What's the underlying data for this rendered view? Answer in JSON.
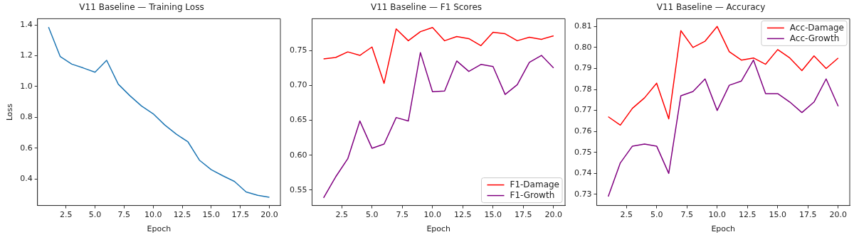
{
  "chart_data": [
    {
      "type": "line",
      "title": "V11 Baseline — Training Loss",
      "xlabel": "Epoch",
      "ylabel": "Loss",
      "x": [
        1,
        2,
        3,
        4,
        5,
        6,
        7,
        8,
        9,
        10,
        11,
        12,
        13,
        14,
        15,
        16,
        17,
        18,
        19,
        20
      ],
      "series": [
        {
          "color": "#1f77b4",
          "values": [
            1.385,
            1.195,
            1.145,
            1.12,
            1.093,
            1.17,
            1.015,
            0.94,
            0.873,
            0.823,
            0.75,
            0.69,
            0.64,
            0.52,
            0.46,
            0.42,
            0.383,
            0.315,
            0.293,
            0.28
          ]
        }
      ],
      "xlim": [
        0.05,
        20.95
      ],
      "xticks": [
        {
          "value": 2.5,
          "label": "2.5"
        },
        {
          "value": 5,
          "label": "5.0"
        },
        {
          "value": 7.5,
          "label": "7.5"
        },
        {
          "value": 10,
          "label": "10.0"
        },
        {
          "value": 12.5,
          "label": "12.5"
        },
        {
          "value": 15,
          "label": "15.0"
        },
        {
          "value": 17.5,
          "label": "17.5"
        },
        {
          "value": 20,
          "label": "20.0"
        }
      ],
      "ylim": [
        0.227,
        1.44
      ],
      "yticks": [
        {
          "value": 0.4,
          "label": "0.4"
        },
        {
          "value": 0.6,
          "label": "0.6"
        },
        {
          "value": 0.8,
          "label": "0.8"
        },
        {
          "value": 1.0,
          "label": "1.0"
        },
        {
          "value": 1.2,
          "label": "1.2"
        },
        {
          "value": 1.4,
          "label": "1.4"
        }
      ]
    },
    {
      "type": "line",
      "title": "V11 Baseline — F1 Scores",
      "xlabel": "Epoch",
      "x": [
        1,
        2,
        3,
        4,
        5,
        6,
        7,
        8,
        9,
        10,
        11,
        12,
        13,
        14,
        15,
        16,
        17,
        18,
        19,
        20
      ],
      "legend": "bottom right",
      "series": [
        {
          "name": "F1-Damage",
          "color": "#ff0000",
          "values": [
            0.738,
            0.74,
            0.748,
            0.743,
            0.755,
            0.703,
            0.781,
            0.764,
            0.777,
            0.783,
            0.764,
            0.77,
            0.767,
            0.757,
            0.776,
            0.774,
            0.764,
            0.769,
            0.766,
            0.771
          ]
        },
        {
          "name": "F1-Growth",
          "color": "#800080",
          "values": [
            0.539,
            0.569,
            0.595,
            0.649,
            0.61,
            0.616,
            0.654,
            0.649,
            0.747,
            0.691,
            0.692,
            0.735,
            0.72,
            0.73,
            0.727,
            0.687,
            0.701,
            0.733,
            0.743,
            0.725
          ]
        }
      ],
      "xlim": [
        0.05,
        20.95
      ],
      "xticks": [
        {
          "value": 2.5,
          "label": "2.5"
        },
        {
          "value": 5,
          "label": "5.0"
        },
        {
          "value": 7.5,
          "label": "7.5"
        },
        {
          "value": 10,
          "label": "10.0"
        },
        {
          "value": 12.5,
          "label": "12.5"
        },
        {
          "value": 15,
          "label": "15.0"
        },
        {
          "value": 17.5,
          "label": "17.5"
        },
        {
          "value": 20,
          "label": "20.0"
        }
      ],
      "ylim": [
        0.528,
        0.7955
      ],
      "yticks": [
        {
          "value": 0.55,
          "label": "0.55"
        },
        {
          "value": 0.6,
          "label": "0.60"
        },
        {
          "value": 0.65,
          "label": "0.65"
        },
        {
          "value": 0.7,
          "label": "0.70"
        },
        {
          "value": 0.75,
          "label": "0.75"
        }
      ]
    },
    {
      "type": "line",
      "title": "V11 Baseline — Accuracy",
      "xlabel": "Epoch",
      "x": [
        1,
        2,
        3,
        4,
        5,
        6,
        7,
        8,
        9,
        10,
        11,
        12,
        13,
        14,
        15,
        16,
        17,
        18,
        19,
        20
      ],
      "legend": "top right",
      "series": [
        {
          "name": "Acc-Damage",
          "color": "#ff0000",
          "values": [
            0.767,
            0.763,
            0.771,
            0.776,
            0.783,
            0.766,
            0.808,
            0.8,
            0.803,
            0.81,
            0.798,
            0.794,
            0.795,
            0.792,
            0.799,
            0.795,
            0.789,
            0.796,
            0.79,
            0.795
          ]
        },
        {
          "name": "Acc-Growth",
          "color": "#800080",
          "values": [
            0.729,
            0.745,
            0.753,
            0.754,
            0.753,
            0.74,
            0.777,
            0.779,
            0.785,
            0.77,
            0.782,
            0.784,
            0.794,
            0.778,
            0.778,
            0.774,
            0.769,
            0.774,
            0.785,
            0.772
          ]
        }
      ],
      "xlim": [
        0.05,
        20.95
      ],
      "xticks": [
        {
          "value": 2.5,
          "label": "2.5"
        },
        {
          "value": 5,
          "label": "5.0"
        },
        {
          "value": 7.5,
          "label": "7.5"
        },
        {
          "value": 10,
          "label": "10.0"
        },
        {
          "value": 12.5,
          "label": "12.5"
        },
        {
          "value": 15,
          "label": "15.0"
        },
        {
          "value": 17.5,
          "label": "17.5"
        },
        {
          "value": 20,
          "label": "20.0"
        }
      ],
      "ylim": [
        0.7247,
        0.8137
      ],
      "yticks": [
        {
          "value": 0.73,
          "label": "0.73"
        },
        {
          "value": 0.74,
          "label": "0.74"
        },
        {
          "value": 0.75,
          "label": "0.75"
        },
        {
          "value": 0.76,
          "label": "0.76"
        },
        {
          "value": 0.77,
          "label": "0.77"
        },
        {
          "value": 0.78,
          "label": "0.78"
        },
        {
          "value": 0.79,
          "label": "0.79"
        },
        {
          "value": 0.8,
          "label": "0.80"
        },
        {
          "value": 0.81,
          "label": "0.81"
        }
      ]
    }
  ]
}
